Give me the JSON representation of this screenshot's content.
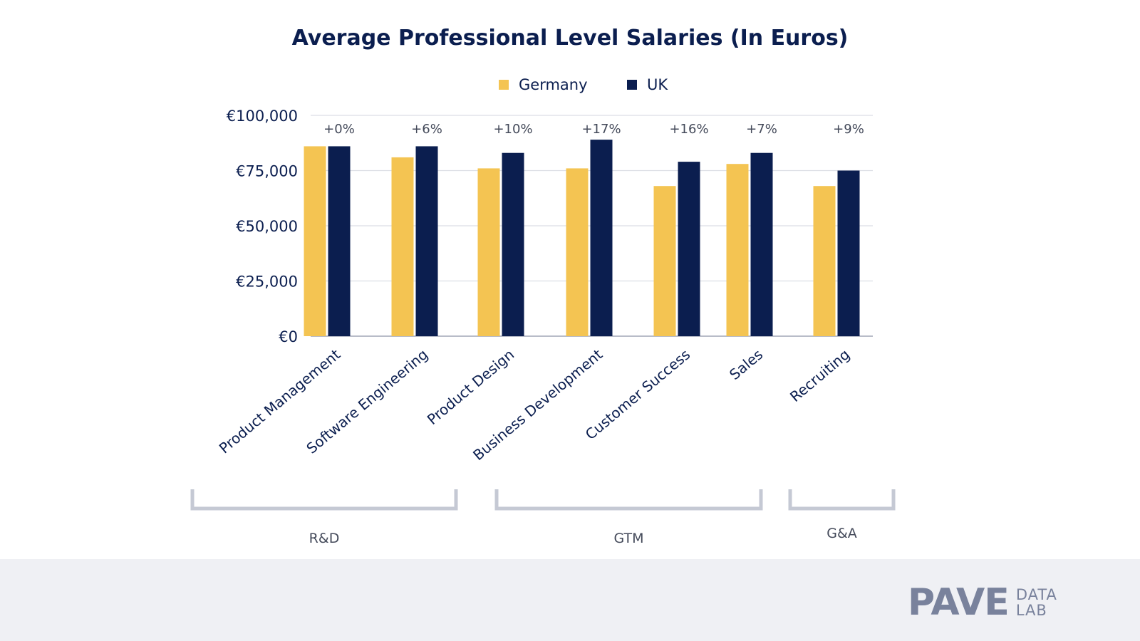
{
  "chart_data": {
    "type": "bar",
    "title": "Average Professional Level Salaries (In Euros)",
    "categories": [
      "Product Management",
      "Software Engineering",
      "Product Design",
      "Business Development",
      "Customer Success",
      "Sales",
      "Recruiting"
    ],
    "series": [
      {
        "name": "Germany",
        "values": [
          86000,
          81000,
          76000,
          76000,
          68000,
          78000,
          68000
        ],
        "color": "#f4c452"
      },
      {
        "name": "UK",
        "values": [
          86000,
          86000,
          83000,
          89000,
          79000,
          83000,
          75000
        ],
        "color": "#0b1e4f"
      }
    ],
    "bar_labels": [
      "+0%",
      "+6%",
      "+10%",
      "+17%",
      "+16%",
      "+7%",
      "+9%"
    ],
    "ylim": [
      0,
      100000
    ],
    "y_ticks": [
      {
        "value": 0,
        "label": "€0"
      },
      {
        "value": 25000,
        "label": "€25,000"
      },
      {
        "value": 50000,
        "label": "€50,000"
      },
      {
        "value": 75000,
        "label": "€75,000"
      },
      {
        "value": 100000,
        "label": "€100,000"
      }
    ],
    "groups": [
      {
        "label": "R&D",
        "categories": [
          "Product Management",
          "Software Engineering",
          "Product Design"
        ]
      },
      {
        "label": "GTM",
        "categories": [
          "Business Development",
          "Customer Success",
          "Sales"
        ]
      },
      {
        "label": "G&A",
        "categories": [
          "Recruiting"
        ]
      }
    ],
    "legend_position": "top-center",
    "grid": true
  },
  "brand": {
    "name": "PAVE",
    "sub_line1": "DATA",
    "sub_line2": "LAB"
  }
}
